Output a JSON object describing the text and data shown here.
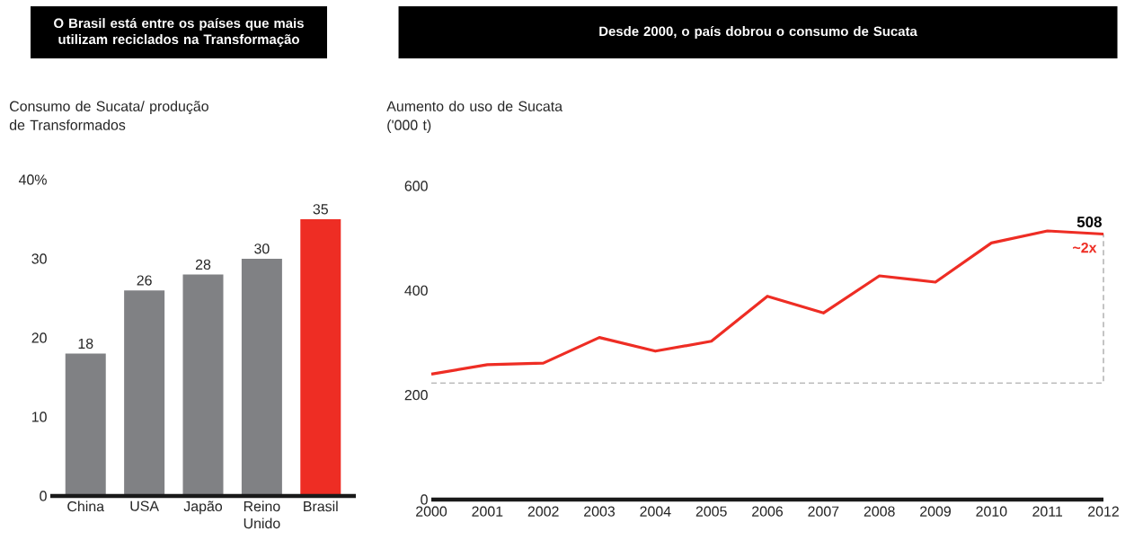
{
  "chart_data": [
    {
      "type": "bar",
      "title": "O Brasil está entre os países que mais utilizam reciclados na Transformação",
      "ylabel": "Consumo de Sucata/ produção de Transformados",
      "categories": [
        "China",
        "USA",
        "Japão",
        "Reino Unido",
        "Brasil"
      ],
      "values": [
        18,
        26,
        28,
        30,
        35
      ],
      "colors": [
        "#808184",
        "#808184",
        "#808184",
        "#808184",
        "#ee2d24"
      ],
      "ylim": [
        0,
        40
      ],
      "yticks": [
        0,
        10,
        20,
        30,
        {
          "value": 40,
          "label": "40%"
        }
      ],
      "data_labels": true
    },
    {
      "type": "line",
      "title": "Desde 2000, o país dobrou o consumo de Sucata",
      "ylabel": "Aumento do uso de Sucata ('000 t)",
      "x": [
        "2000",
        "2001",
        "2002",
        "2003",
        "2004",
        "2005",
        "2006",
        "2007",
        "2008",
        "2009",
        "2010",
        "2011",
        "2012"
      ],
      "series": [
        {
          "color": "#ee2d24",
          "values": [
            240,
            258,
            261,
            310,
            284,
            303,
            389,
            357,
            428,
            416,
            491,
            514,
            508
          ],
          "value_labels": [
            null,
            null,
            null,
            null,
            null,
            null,
            null,
            null,
            null,
            null,
            null,
            null,
            "508"
          ]
        }
      ],
      "xlim": [
        "2000",
        "2012"
      ],
      "xticks": [
        "2000",
        "2001",
        "2002",
        "2003",
        "2004",
        "2005",
        "2006",
        "2007",
        "2008",
        "2009",
        "2010",
        "2011",
        "2012"
      ],
      "ylim": [
        0,
        600
      ],
      "yticks": [
        0,
        200,
        400,
        600
      ],
      "ref_lines": [
        {
          "axis": "y",
          "value": 223,
          "color": "#9d9d9d",
          "line_style": "dashed"
        }
      ],
      "annotations": [
        "~2x"
      ]
    }
  ]
}
